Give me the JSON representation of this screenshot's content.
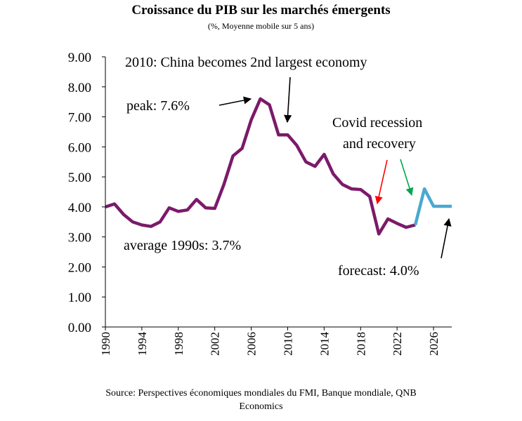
{
  "chart_data": {
    "type": "line",
    "title": "Croissance du PIB sur les marchés émergents",
    "subtitle": "(%, Moyenne mobile sur 5 ans)",
    "xlabel": "",
    "ylabel": "",
    "xlim": [
      1990,
      2028
    ],
    "ylim": [
      0,
      9
    ],
    "yticks": [
      "0.00",
      "1.00",
      "2.00",
      "3.00",
      "4.00",
      "5.00",
      "6.00",
      "7.00",
      "8.00",
      "9.00"
    ],
    "xticks": [
      "1990",
      "1994",
      "1998",
      "2002",
      "2006",
      "2010",
      "2014",
      "2018",
      "2022",
      "2026"
    ],
    "grid": false,
    "series": [
      {
        "color": "#7b1a6a",
        "x": [
          1990,
          1991,
          1992,
          1993,
          1994,
          1995,
          1996,
          1997,
          1998,
          1999,
          2000,
          2001,
          2002,
          2003,
          2004,
          2005,
          2006,
          2007,
          2008,
          2009,
          2010,
          2011,
          2012,
          2013,
          2014,
          2015,
          2016,
          2017,
          2018,
          2019,
          2020,
          2021,
          2022,
          2023,
          2024
        ],
        "values": [
          4.0,
          4.1,
          3.75,
          3.5,
          3.4,
          3.35,
          3.5,
          3.97,
          3.85,
          3.9,
          4.25,
          3.97,
          3.95,
          4.75,
          5.7,
          5.95,
          6.9,
          7.6,
          7.4,
          6.4,
          6.4,
          6.05,
          5.5,
          5.35,
          5.75,
          5.1,
          4.75,
          4.6,
          4.58,
          4.35,
          3.1,
          3.6,
          3.45,
          3.32,
          3.4
        ]
      },
      {
        "color": "#4aa8d0",
        "x": [
          2024,
          2025,
          2026,
          2027,
          2028
        ],
        "values": [
          3.4,
          4.6,
          4.02,
          4.02,
          4.02
        ]
      }
    ],
    "annotations": {
      "top": "2010:  China becomes 2nd largest economy",
      "peak": "peak: 7.6%",
      "covid": [
        "Covid recession",
        "and recovery"
      ],
      "average": "average 1990s:  3.7%",
      "forecast": "forecast: 4.0%"
    },
    "arrow_colors": {
      "default": "#000000",
      "recession": "#ff0000",
      "recovery": "#00a651"
    }
  },
  "source": [
    "Source: Perspectives économiques mondiales du FMI, Banque mondiale, QNB",
    "Economics"
  ]
}
